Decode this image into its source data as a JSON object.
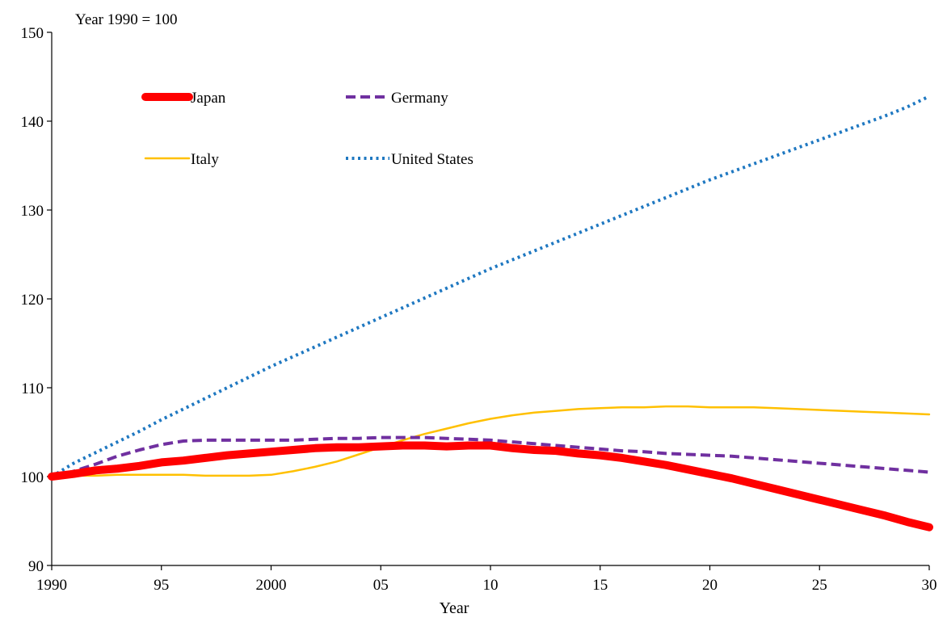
{
  "chart_data": {
    "type": "line",
    "title": "",
    "unit_note": "Year 1990 = 100",
    "xlabel": "Year",
    "ylabel": "",
    "xlim": [
      1990,
      2030
    ],
    "ylim": [
      90,
      150
    ],
    "x_ticks": [
      {
        "value": 1990,
        "label": "1990"
      },
      {
        "value": 1995,
        "label": "95"
      },
      {
        "value": 2000,
        "label": "2000"
      },
      {
        "value": 2005,
        "label": "05"
      },
      {
        "value": 2010,
        "label": "10"
      },
      {
        "value": 2015,
        "label": "15"
      },
      {
        "value": 2020,
        "label": "20"
      },
      {
        "value": 2025,
        "label": "25"
      },
      {
        "value": 2030,
        "label": "30"
      }
    ],
    "y_ticks": [
      {
        "value": 90,
        "label": "90"
      },
      {
        "value": 100,
        "label": "100"
      },
      {
        "value": 110,
        "label": "110"
      },
      {
        "value": 120,
        "label": "120"
      },
      {
        "value": 130,
        "label": "130"
      },
      {
        "value": 140,
        "label": "140"
      },
      {
        "value": 150,
        "label": "150"
      }
    ],
    "grid": false,
    "legend_position": "top-left",
    "x": [
      1990,
      1991,
      1992,
      1993,
      1994,
      1995,
      1996,
      1997,
      1998,
      1999,
      2000,
      2001,
      2002,
      2003,
      2004,
      2005,
      2006,
      2007,
      2008,
      2009,
      2010,
      2011,
      2012,
      2013,
      2014,
      2015,
      2016,
      2017,
      2018,
      2019,
      2020,
      2021,
      2022,
      2023,
      2024,
      2025,
      2026,
      2027,
      2028,
      2029,
      2030
    ],
    "series": [
      {
        "name": "Japan",
        "color": "#ff0000",
        "style": "solid-thick",
        "values": [
          100,
          100.3,
          100.7,
          100.9,
          101.2,
          101.6,
          101.8,
          102.1,
          102.4,
          102.6,
          102.8,
          103.0,
          103.2,
          103.3,
          103.3,
          103.4,
          103.5,
          103.5,
          103.4,
          103.5,
          103.5,
          103.2,
          103.0,
          102.9,
          102.6,
          102.4,
          102.1,
          101.7,
          101.3,
          100.8,
          100.3,
          99.8,
          99.2,
          98.6,
          98.0,
          97.4,
          96.8,
          96.2,
          95.6,
          94.9,
          94.3
        ]
      },
      {
        "name": "Germany",
        "color": "#7030a0",
        "style": "dashed",
        "values": [
          100,
          100.6,
          101.4,
          102.3,
          103.0,
          103.6,
          104.0,
          104.1,
          104.1,
          104.1,
          104.1,
          104.1,
          104.2,
          104.3,
          104.3,
          104.4,
          104.4,
          104.4,
          104.3,
          104.2,
          104.1,
          103.9,
          103.7,
          103.5,
          103.3,
          103.1,
          102.9,
          102.8,
          102.6,
          102.5,
          102.4,
          102.3,
          102.1,
          101.9,
          101.7,
          101.5,
          101.3,
          101.1,
          100.9,
          100.7,
          100.5
        ]
      },
      {
        "name": "Italy",
        "color": "#ffc000",
        "style": "solid-thin",
        "values": [
          99.8,
          100.1,
          100.1,
          100.2,
          100.2,
          100.2,
          100.2,
          100.1,
          100.1,
          100.1,
          100.2,
          100.6,
          101.1,
          101.7,
          102.5,
          103.3,
          104.1,
          104.8,
          105.4,
          106.0,
          106.5,
          106.9,
          107.2,
          107.4,
          107.6,
          107.7,
          107.8,
          107.8,
          107.9,
          107.9,
          107.8,
          107.8,
          107.8,
          107.7,
          107.6,
          107.5,
          107.4,
          107.3,
          107.2,
          107.1,
          107.0
        ]
      },
      {
        "name": "United States",
        "color": "#1f78c1",
        "style": "dotted",
        "values": [
          100,
          101.5,
          102.7,
          103.9,
          105.1,
          106.4,
          107.6,
          108.8,
          110.0,
          111.2,
          112.4,
          113.5,
          114.6,
          115.7,
          116.8,
          117.9,
          119.0,
          120.1,
          121.2,
          122.3,
          123.4,
          124.4,
          125.4,
          126.4,
          127.4,
          128.4,
          129.4,
          130.4,
          131.4,
          132.4,
          133.4,
          134.3,
          135.2,
          136.1,
          137.0,
          137.9,
          138.8,
          139.7,
          140.6,
          141.6,
          142.8
        ]
      }
    ]
  }
}
